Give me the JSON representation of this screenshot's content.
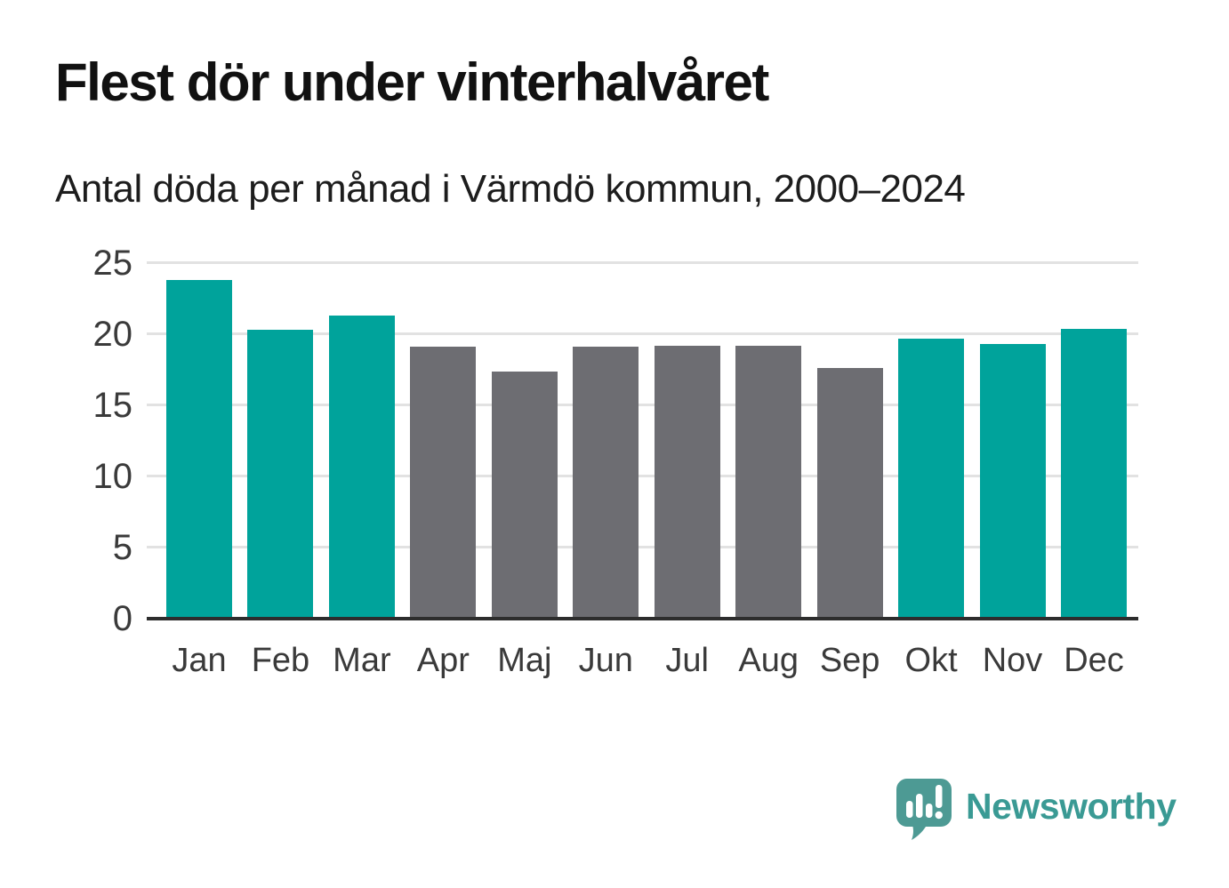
{
  "header": {
    "title": "Flest dör under vinterhalvåret",
    "subtitle": "Antal döda per månad i Värmdö kommun, 2000–2024"
  },
  "chart_data": {
    "type": "bar",
    "title": "Flest dör under vinterhalvåret",
    "subtitle": "Antal döda per månad i Värmdö kommun, 2000–2024",
    "categories": [
      "Jan",
      "Feb",
      "Mar",
      "Apr",
      "Maj",
      "Jun",
      "Jul",
      "Aug",
      "Sep",
      "Okt",
      "Nov",
      "Dec"
    ],
    "values": [
      23.8,
      20.3,
      21.3,
      19.1,
      17.4,
      19.1,
      19.2,
      19.2,
      17.6,
      19.7,
      19.3,
      20.4
    ],
    "bar_colors": [
      "winter",
      "winter",
      "winter",
      "summer",
      "summer",
      "summer",
      "summer",
      "summer",
      "summer",
      "winter",
      "winter",
      "winter"
    ],
    "palette": {
      "winter": "#00a39b",
      "summer": "#6d6d72"
    },
    "xlabel": "",
    "ylabel": "",
    "ylim": [
      0,
      25
    ],
    "yticks": [
      0,
      5,
      10,
      15,
      20,
      25
    ],
    "grid": "horizontal-light",
    "legend_position": "none"
  },
  "footer": {
    "brand": "Newsworthy"
  },
  "colors": {
    "accent_teal": "#00a39b",
    "neutral_gray": "#6d6d72",
    "gridline": "#e2e2e2",
    "axis_line": "#2d2d2d",
    "title_text": "#111111",
    "tick_text": "#3a3a3a",
    "logo_bubble": "#4d9a94",
    "logo_text": "#3a9a94"
  }
}
